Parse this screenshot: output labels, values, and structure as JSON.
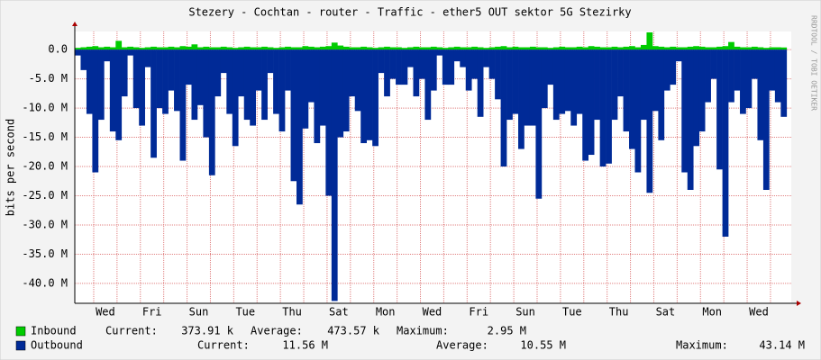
{
  "chart_data": {
    "type": "bar",
    "title": "Stezery - Cochtan - router - Traffic - ether5 OUT sektor 5G Stezirky",
    "y_label": "bits per second",
    "watermark": "RRDTOOL / TOBI OETIKER",
    "xlim": [
      0,
      30.7
    ],
    "ylim": [
      -43.4,
      3.1
    ],
    "yticks": [
      {
        "value": 0,
        "label": "0.0"
      },
      {
        "value": -5,
        "label": "-5.0 M"
      },
      {
        "value": -10,
        "label": "-10.0 M"
      },
      {
        "value": -15,
        "label": "-15.0 M"
      },
      {
        "value": -20,
        "label": "-20.0 M"
      },
      {
        "value": -25,
        "label": "-25.0 M"
      },
      {
        "value": -30,
        "label": "-30.0 M"
      },
      {
        "value": -35,
        "label": "-35.0 M"
      },
      {
        "value": -40,
        "label": "-40.0 M"
      }
    ],
    "xticks": [
      {
        "value": 1.31,
        "label": "Wed"
      },
      {
        "value": 3.31,
        "label": "Fri"
      },
      {
        "value": 5.31,
        "label": "Sun"
      },
      {
        "value": 7.31,
        "label": "Tue"
      },
      {
        "value": 9.31,
        "label": "Thu"
      },
      {
        "value": 11.31,
        "label": "Sat"
      },
      {
        "value": 13.31,
        "label": "Mon"
      },
      {
        "value": 15.31,
        "label": "Wed"
      },
      {
        "value": 17.31,
        "label": "Fri"
      },
      {
        "value": 19.31,
        "label": "Sun"
      },
      {
        "value": 21.31,
        "label": "Tue"
      },
      {
        "value": 23.31,
        "label": "Thu"
      },
      {
        "value": 25.31,
        "label": "Sat"
      },
      {
        "value": 27.31,
        "label": "Mon"
      },
      {
        "value": 29.31,
        "label": "Wed"
      }
    ],
    "xgrid": [
      0.81,
      1.81,
      2.81,
      3.81,
      4.81,
      5.81,
      6.81,
      7.81,
      8.81,
      9.81,
      10.81,
      11.81,
      12.81,
      13.81,
      14.81,
      15.81,
      16.81,
      17.81,
      18.81,
      19.81,
      20.81,
      21.81,
      22.81,
      23.81,
      24.81,
      25.81,
      26.81,
      27.81,
      28.81,
      29.81
    ],
    "grid": true,
    "bar_width": 0.25,
    "legend_labels": [
      "Current:",
      "Average:",
      "Maximum:"
    ],
    "x": [
      0.25,
      0.5,
      0.75,
      1,
      1.25,
      1.5,
      1.75,
      2,
      2.25,
      2.5,
      2.75,
      3,
      3.25,
      3.5,
      3.75,
      4,
      4.25,
      4.5,
      4.75,
      5,
      5.25,
      5.5,
      5.75,
      6,
      6.25,
      6.5,
      6.75,
      7,
      7.25,
      7.5,
      7.75,
      8,
      8.25,
      8.5,
      8.75,
      9,
      9.25,
      9.5,
      9.75,
      10,
      10.25,
      10.5,
      10.75,
      11,
      11.25,
      11.5,
      11.75,
      12,
      12.25,
      12.5,
      12.75,
      13,
      13.25,
      13.5,
      13.75,
      14,
      14.25,
      14.5,
      14.75,
      15,
      15.25,
      15.5,
      15.75,
      16,
      16.25,
      16.5,
      16.75,
      17,
      17.25,
      17.5,
      17.75,
      18,
      18.25,
      18.5,
      18.75,
      19,
      19.25,
      19.5,
      19.75,
      20,
      20.25,
      20.5,
      20.75,
      21,
      21.25,
      21.5,
      21.75,
      22,
      22.25,
      22.5,
      22.75,
      23,
      23.25,
      23.5,
      23.75,
      24,
      24.25,
      24.5,
      24.75,
      25,
      25.25,
      25.5,
      25.75,
      26,
      26.25,
      26.5,
      26.75,
      27,
      27.25,
      27.5,
      27.75,
      28,
      28.25,
      28.5,
      28.75,
      29,
      29.25,
      29.5,
      29.75,
      30,
      30.25,
      30.5
    ],
    "series": [
      {
        "name": "Inbound",
        "color": "#00cc00",
        "current": "373.91 k",
        "average": "473.57 k",
        "maximum": "2.95 M",
        "values": [
          0.3,
          0.4,
          0.5,
          0.6,
          0.4,
          0.5,
          0.4,
          1.5,
          0.4,
          0.5,
          0.4,
          0.3,
          0.4,
          0.5,
          0.4,
          0.4,
          0.5,
          0.4,
          0.6,
          0.5,
          0.9,
          0.4,
          0.5,
          0.4,
          0.4,
          0.5,
          0.4,
          0.3,
          0.4,
          0.5,
          0.4,
          0.4,
          0.5,
          0.4,
          0.3,
          0.4,
          0.5,
          0.4,
          0.4,
          0.6,
          0.5,
          0.4,
          0.5,
          0.6,
          1.2,
          0.7,
          0.5,
          0.4,
          0.4,
          0.5,
          0.4,
          0.3,
          0.4,
          0.5,
          0.4,
          0.4,
          0.3,
          0.4,
          0.5,
          0.4,
          0.4,
          0.5,
          0.4,
          0.3,
          0.4,
          0.5,
          0.4,
          0.4,
          0.5,
          0.4,
          0.3,
          0.4,
          0.5,
          0.6,
          0.4,
          0.5,
          0.4,
          0.4,
          0.5,
          0.4,
          0.4,
          0.3,
          0.4,
          0.5,
          0.4,
          0.4,
          0.5,
          0.4,
          0.6,
          0.5,
          0.4,
          0.4,
          0.5,
          0.4,
          0.5,
          0.6,
          0.4,
          0.8,
          2.95,
          0.6,
          0.5,
          0.4,
          0.5,
          0.4,
          0.4,
          0.5,
          0.6,
          0.5,
          0.4,
          0.4,
          0.5,
          0.6,
          1.3,
          0.5,
          0.4,
          0.4,
          0.5,
          0.4,
          0.3,
          0.4,
          0.4,
          0.37
        ]
      },
      {
        "name": "Outbound",
        "color": "#002a97",
        "current": "11.56 M",
        "average": "10.55 M",
        "maximum": "43.14 M",
        "values": [
          -1,
          -3.5,
          -11,
          -21,
          -12,
          -2,
          -14,
          -15.5,
          -8,
          -1,
          -10,
          -13,
          -3,
          -18.5,
          -10,
          -11,
          -7,
          -10.5,
          -19,
          -6,
          -12,
          -9.5,
          -15,
          -21.5,
          -8,
          -4,
          -11,
          -16.5,
          -8,
          -12,
          -13,
          -7,
          -12,
          -4,
          -11,
          -14,
          -7,
          -22.5,
          -26.5,
          -13.5,
          -9,
          -16,
          -13,
          -25,
          -43,
          -15,
          -14,
          -8,
          -10.5,
          -16,
          -15.5,
          -16.5,
          -4,
          -8,
          -5,
          -6,
          -6,
          -3,
          -8,
          -5,
          -12,
          -7,
          -1,
          -6,
          -6,
          -2,
          -3,
          -7,
          -5,
          -11.5,
          -3,
          -5,
          -8.5,
          -20,
          -12,
          -11,
          -17,
          -13,
          -13,
          -25.5,
          -10,
          -6,
          -12,
          -11,
          -10.5,
          -13,
          -11,
          -19,
          -18,
          -12,
          -20,
          -19.5,
          -12,
          -8,
          -14,
          -17,
          -21,
          -12,
          -24.5,
          -10.5,
          -15.5,
          -7,
          -6,
          -2,
          -21,
          -24,
          -16.5,
          -14,
          -9,
          -5,
          -20.5,
          -32,
          -9,
          -7,
          -11,
          -10,
          -5,
          -15.5,
          -24,
          -7,
          -9,
          -11.5
        ]
      }
    ]
  }
}
